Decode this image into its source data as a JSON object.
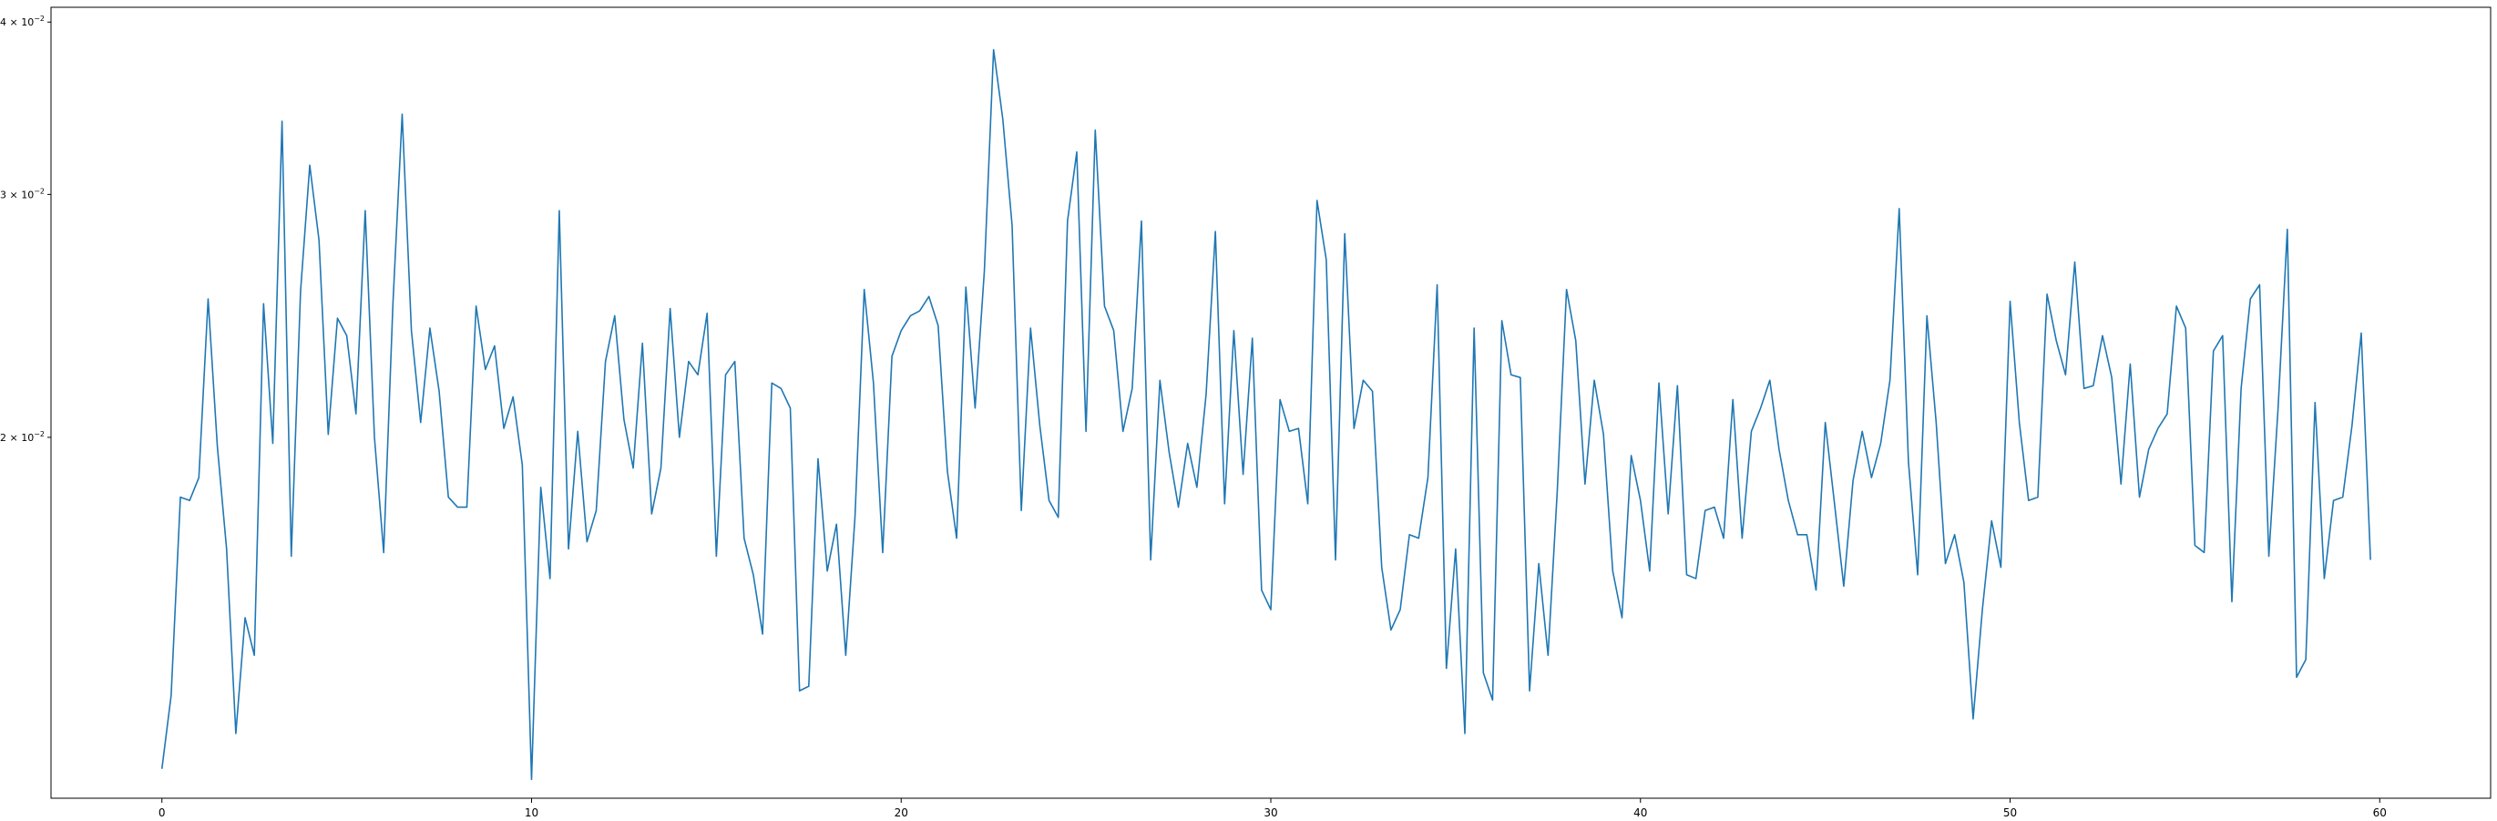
{
  "chart_data": {
    "type": "line",
    "title": "",
    "xlabel": "",
    "ylabel": "",
    "yscale": "log",
    "xlim": [
      -3.0,
      63.0
    ],
    "ylim": [
      0.01095,
      0.041
    ],
    "grid": false,
    "legend": "none",
    "colors": {
      "line": "#1f77b4",
      "axes": "#000000",
      "background": "#ffffff"
    },
    "x_ticks": [
      {
        "value": 0,
        "label": "0"
      },
      {
        "value": 10,
        "label": "10"
      },
      {
        "value": 20,
        "label": "20"
      },
      {
        "value": 30,
        "label": "30"
      },
      {
        "value": 40,
        "label": "40"
      },
      {
        "value": 50,
        "label": "50"
      },
      {
        "value": 60,
        "label": "60"
      }
    ],
    "y_ticks": [
      {
        "value": 0.02,
        "mantissa": "2",
        "base": "10",
        "exp": "−2"
      },
      {
        "value": 0.03,
        "mantissa": "3",
        "base": "10",
        "exp": "−2"
      },
      {
        "value": 0.04,
        "mantissa": "4",
        "base": "10",
        "exp": "−2"
      }
    ],
    "series": [
      {
        "x_start": 0,
        "x_step": 0.25,
        "values": [
          0.0115,
          0.013,
          0.0181,
          0.018,
          0.0187,
          0.0252,
          0.0197,
          0.0166,
          0.0122,
          0.0148,
          0.0139,
          0.025,
          0.0198,
          0.0339,
          0.0164,
          0.0255,
          0.0315,
          0.0278,
          0.0201,
          0.0244,
          0.0237,
          0.0208,
          0.0292,
          0.02,
          0.0165,
          0.025,
          0.0343,
          0.0239,
          0.0205,
          0.024,
          0.0216,
          0.0181,
          0.0178,
          0.0178,
          0.0249,
          0.0224,
          0.0233,
          0.0203,
          0.0214,
          0.0191,
          0.0113,
          0.0184,
          0.0158,
          0.0292,
          0.0166,
          0.0202,
          0.0168,
          0.0177,
          0.0227,
          0.0245,
          0.0206,
          0.019,
          0.0234,
          0.0176,
          0.019,
          0.0248,
          0.02,
          0.0227,
          0.0222,
          0.0246,
          0.0164,
          0.0222,
          0.0227,
          0.0169,
          0.0159,
          0.0144,
          0.0219,
          0.0217,
          0.021,
          0.0131,
          0.0132,
          0.0193,
          0.016,
          0.0173,
          0.0139,
          0.0175,
          0.0256,
          0.0219,
          0.0165,
          0.0229,
          0.0239,
          0.0245,
          0.0247,
          0.0253,
          0.0241,
          0.0189,
          0.0169,
          0.0257,
          0.021,
          0.0264,
          0.0382,
          0.034,
          0.0285,
          0.0177,
          0.024,
          0.0204,
          0.018,
          0.0175,
          0.0287,
          0.0322,
          0.0202,
          0.0334,
          0.0249,
          0.0239,
          0.0202,
          0.0217,
          0.0287,
          0.0163,
          0.022,
          0.0195,
          0.0178,
          0.0198,
          0.0184,
          0.0215,
          0.0282,
          0.0179,
          0.0239,
          0.0188,
          0.0236,
          0.0155,
          0.015,
          0.0213,
          0.0202,
          0.0203,
          0.0179,
          0.0297,
          0.0269,
          0.0163,
          0.0281,
          0.0203,
          0.022,
          0.0216,
          0.0161,
          0.0145,
          0.015,
          0.017,
          0.0169,
          0.0187,
          0.0258,
          0.0136,
          0.0166,
          0.0122,
          0.024,
          0.0135,
          0.0129,
          0.0243,
          0.0222,
          0.0221,
          0.0131,
          0.0162,
          0.0139,
          0.0183,
          0.0256,
          0.0235,
          0.0185,
          0.022,
          0.0201,
          0.016,
          0.0148,
          0.0194,
          0.018,
          0.016,
          0.0219,
          0.0176,
          0.0218,
          0.0159,
          0.0158,
          0.0177,
          0.0178,
          0.0169,
          0.0213,
          0.0169,
          0.0202,
          0.021,
          0.022,
          0.0196,
          0.018,
          0.017,
          0.017,
          0.0155,
          0.0205,
          0.0179,
          0.0156,
          0.0186,
          0.0202,
          0.0187,
          0.0198,
          0.022,
          0.0293,
          0.0192,
          0.0159,
          0.0245,
          0.0205,
          0.0162,
          0.017,
          0.0157,
          0.0125,
          0.015,
          0.0174,
          0.0161,
          0.0251,
          0.0205,
          0.018,
          0.0181,
          0.0254,
          0.0235,
          0.0222,
          0.0268,
          0.0217,
          0.0218,
          0.0237,
          0.0221,
          0.0185,
          0.0226,
          0.0181,
          0.0196,
          0.0203,
          0.0208,
          0.0249,
          0.024,
          0.0167,
          0.0165,
          0.0231,
          0.0237,
          0.0152,
          0.0217,
          0.0252,
          0.0258,
          0.0164,
          0.021,
          0.0283,
          0.0134,
          0.0138,
          0.0212,
          0.0158,
          0.018,
          0.0181,
          0.0204,
          0.0238,
          0.0163
        ]
      }
    ]
  }
}
